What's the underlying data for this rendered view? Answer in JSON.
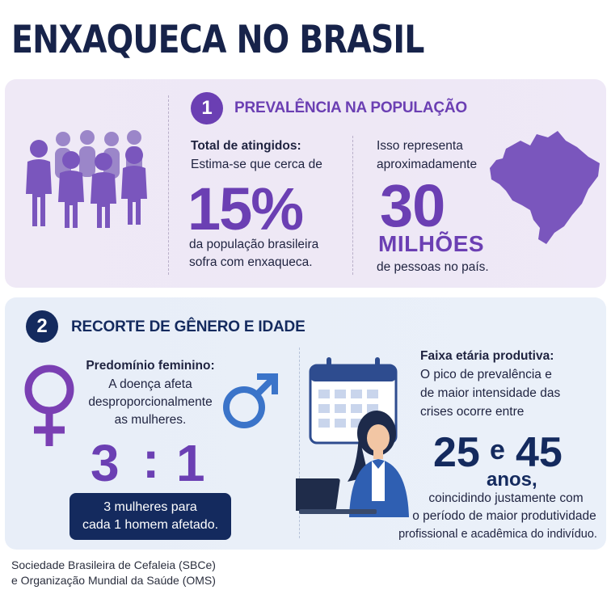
{
  "title": "ENXAQUECA NO BRASIL",
  "section1": {
    "number": "1",
    "title": "PREVALÊNCIA NA POPULAÇÃO",
    "left": {
      "heading": "Total de atingidos:",
      "line1": "Estima-se que cerca de",
      "value": "15%",
      "line2": "da população brasileira",
      "line3": "sofra com enxaqueca."
    },
    "right": {
      "line1": "Isso representa",
      "line2": "aproximadamente",
      "value": "30",
      "unit": "MILHÕES",
      "line3": "de pessoas no país."
    }
  },
  "section2": {
    "number": "2",
    "title": "RECORTE DE GÊNERO E IDADE",
    "left": {
      "heading": "Predomínio feminino:",
      "line1": "A doença afeta",
      "line2": "desproporcionalmente",
      "line3": "as mulheres.",
      "ratio_left": "3",
      "ratio_sep": ":",
      "ratio_right": "1",
      "box_line1": "3 mulheres para",
      "box_line2": "cada 1 homem afetado."
    },
    "right": {
      "heading": "Faixa etária produtiva:",
      "line1": "O pico de prevalência e",
      "line2": "de maior intensidade das",
      "line3": "crises ocorre entre",
      "age_from": "25",
      "age_join": "e",
      "age_to": "45",
      "age_unit": "anos,",
      "line4": "coincidindo justamente com",
      "line5": "o período de maior produtividade",
      "line6": "profissional e acadêmica do indivíduo."
    }
  },
  "source": {
    "line1": "Sociedade Brasileira de Cefaleia (SBCe)",
    "line2": "e Organização Mundial da Saúde (OMS)"
  },
  "colors": {
    "purple": "#6b3fb3",
    "navy": "#142a5e",
    "male_blue": "#3b74c9",
    "panel1_bg": "#efe9f6",
    "panel2_bg": "#e8eef8"
  },
  "icons": [
    "people-group-icon",
    "brazil-map-icon",
    "female-symbol-icon",
    "male-symbol-icon",
    "calendar-icon",
    "woman-laptop-icon"
  ]
}
